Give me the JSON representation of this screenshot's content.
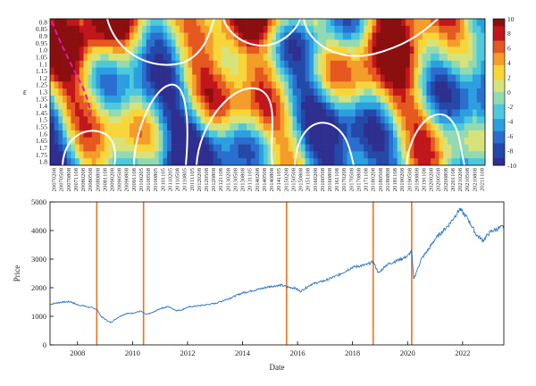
{
  "chart_data": [
    {
      "type": "heatmap",
      "ylabel": "ε",
      "y_ticks": [
        "0.8",
        "0.85",
        "0.9",
        "0.95",
        "1.0",
        "1.05",
        "1.1",
        "1.15",
        "1.2",
        "1.25",
        "1.3",
        "1.35",
        "1.4",
        "1.45",
        "1.5",
        "1.55",
        "1.6",
        "1.65",
        "1.7",
        "1.75",
        "1.8"
      ],
      "x_ticks": [
        "20070208",
        "20070508",
        "20070808",
        "20071108",
        "20080208",
        "20080508",
        "20080808",
        "20081108",
        "20090208",
        "20090508",
        "20090808",
        "20091108",
        "20100205",
        "20100508",
        "20100805",
        "20101105",
        "20110205",
        "20110508",
        "20110805",
        "20111105",
        "20120208",
        "20120508",
        "20120808",
        "20121108",
        "20130208",
        "20130508",
        "20130808",
        "20131105",
        "20140208",
        "20140508",
        "20140808",
        "20141105",
        "20150208",
        "20150508",
        "20150808",
        "20151108",
        "20160208",
        "20160508",
        "20160808",
        "20161108",
        "20170208",
        "20170508",
        "20170808",
        "20171108",
        "20180208",
        "20180508",
        "20180808",
        "20181108",
        "20190208",
        "20190508",
        "20190808",
        "20191108",
        "20200208",
        "20200508",
        "20200808",
        "20201108",
        "20210208",
        "20210508",
        "20210808",
        "20211108"
      ],
      "colorbar": {
        "min": -10,
        "max": 10,
        "ticks": [
          "10",
          "8",
          "6",
          "4",
          "2",
          "0",
          "-2",
          "-4",
          "-6",
          "-8",
          "-10"
        ]
      },
      "colormap": [
        "#2e2f8f",
        "#2449a8",
        "#2a6fce",
        "#2c9fe0",
        "#4cc9dc",
        "#93dab2",
        "#d7e37a",
        "#f8d63a",
        "#f49d2a",
        "#e5581f",
        "#c1161b",
        "#8b0f0f"
      ],
      "contour_color": "#ffffff",
      "dashed_contour_color": "#d81bb0"
    },
    {
      "type": "line",
      "xlabel": "Date",
      "ylabel": "Price",
      "xlim": [
        2007,
        2023.5
      ],
      "ylim": [
        0,
        5000
      ],
      "x_ticks": [
        2008,
        2010,
        2012,
        2014,
        2016,
        2018,
        2020,
        2022
      ],
      "y_ticks": [
        0,
        1000,
        2000,
        3000,
        4000,
        5000
      ],
      "line_color": "#2d78c4",
      "marker_line_color": "#e8741f",
      "vertical_markers": [
        2008.7,
        2010.4,
        2015.6,
        2018.75,
        2020.15
      ],
      "series": [
        {
          "x": [
            2007.0,
            2007.25,
            2007.5,
            2007.75,
            2008.0,
            2008.25,
            2008.5,
            2008.7,
            2008.85,
            2009.0,
            2009.2,
            2009.5,
            2009.75,
            2010.0,
            2010.3,
            2010.5,
            2010.75,
            2011.0,
            2011.3,
            2011.6,
            2011.8,
            2012.0,
            2012.5,
            2013.0,
            2013.5,
            2014.0,
            2014.5,
            2015.0,
            2015.4,
            2015.65,
            2015.9,
            2016.1,
            2016.5,
            2017.0,
            2017.5,
            2018.0,
            2018.5,
            2018.75,
            2018.95,
            2019.2,
            2019.5,
            2020.0,
            2020.15,
            2020.22,
            2020.5,
            2020.8,
            2021.0,
            2021.5,
            2021.9,
            2022.2,
            2022.5,
            2022.75,
            2023.0,
            2023.25,
            2023.5
          ],
          "y": [
            1420,
            1470,
            1500,
            1510,
            1400,
            1360,
            1300,
            1250,
            1000,
            900,
            780,
            980,
            1090,
            1110,
            1180,
            1060,
            1140,
            1270,
            1340,
            1200,
            1230,
            1320,
            1380,
            1450,
            1620,
            1820,
            1930,
            2040,
            2090,
            2020,
            1990,
            1870,
            2120,
            2250,
            2450,
            2720,
            2800,
            2910,
            2500,
            2780,
            2900,
            3100,
            3300,
            2300,
            3000,
            3400,
            3700,
            4200,
            4750,
            4400,
            3850,
            3650,
            3950,
            4050,
            4150
          ]
        }
      ]
    }
  ]
}
